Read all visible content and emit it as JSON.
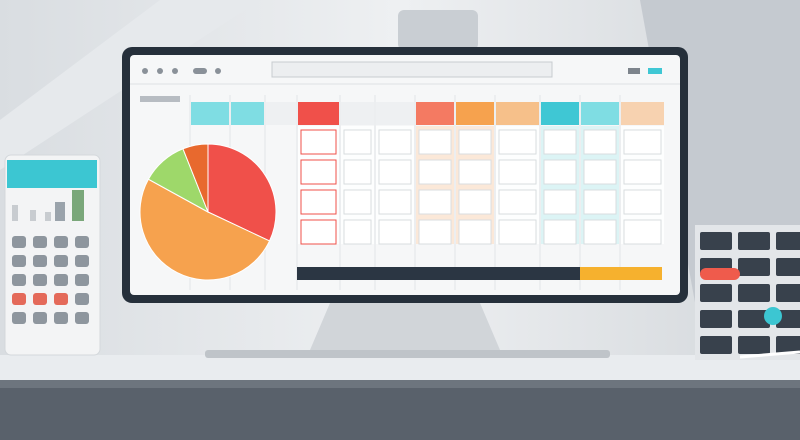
{
  "pie": {
    "values": [
      32,
      51,
      11,
      6
    ],
    "colors": [
      "#f0504a",
      "#f6a24e",
      "#9ed86a",
      "#e8692e"
    ]
  }
}
